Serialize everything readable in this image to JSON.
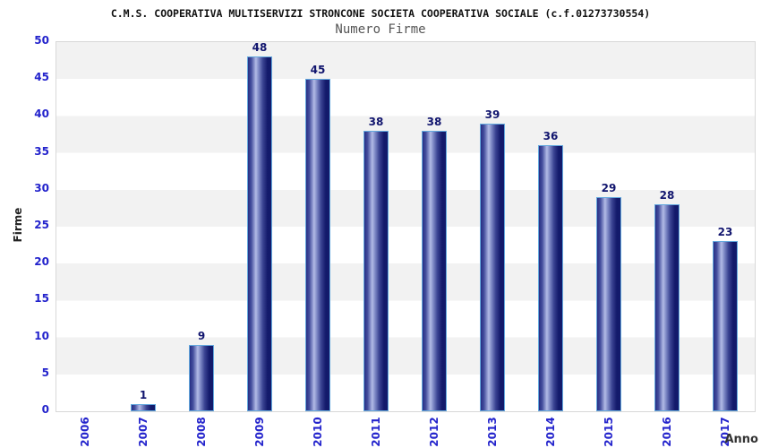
{
  "header": {
    "title": "C.M.S. COOPERATIVA MULTISERVIZI STRONCONE SOCIETA COOPERATIVA SOCIALE (c.f.01273730554)",
    "subtitle": "Numero Firme"
  },
  "chart_data": {
    "type": "bar",
    "title": "Numero Firme",
    "categories": [
      "2006",
      "2007",
      "2008",
      "2009",
      "2010",
      "2011",
      "2012",
      "2013",
      "2014",
      "2015",
      "2016",
      "2017"
    ],
    "values": [
      0,
      1,
      9,
      48,
      45,
      38,
      38,
      39,
      36,
      29,
      28,
      23
    ],
    "xlabel": "Anno",
    "ylabel": "Firme",
    "ylim": [
      0,
      50
    ],
    "ytick_step": 5,
    "ytick_labels": [
      "0",
      "5",
      "10",
      "15",
      "20",
      "25",
      "30",
      "35",
      "40",
      "45",
      "50"
    ],
    "grid": "horizontal-bands",
    "legend_position": "none",
    "value_labels_shown": true,
    "colors": {
      "bar_edge_dark": "#272e84",
      "bar_highlight": "#b2bbe6",
      "bar_right_dark": "#131a6b",
      "bar_border": "#64a9de",
      "axis_tick_label": "#2323cc",
      "value_label": "#11156e",
      "band_gray": "#f2f2f2",
      "band_white": "#ffffff",
      "plot_border": "#d8d8d8",
      "title_color": "#111111",
      "subtitle_color": "#555555",
      "axis_title_color": "#333333"
    }
  }
}
